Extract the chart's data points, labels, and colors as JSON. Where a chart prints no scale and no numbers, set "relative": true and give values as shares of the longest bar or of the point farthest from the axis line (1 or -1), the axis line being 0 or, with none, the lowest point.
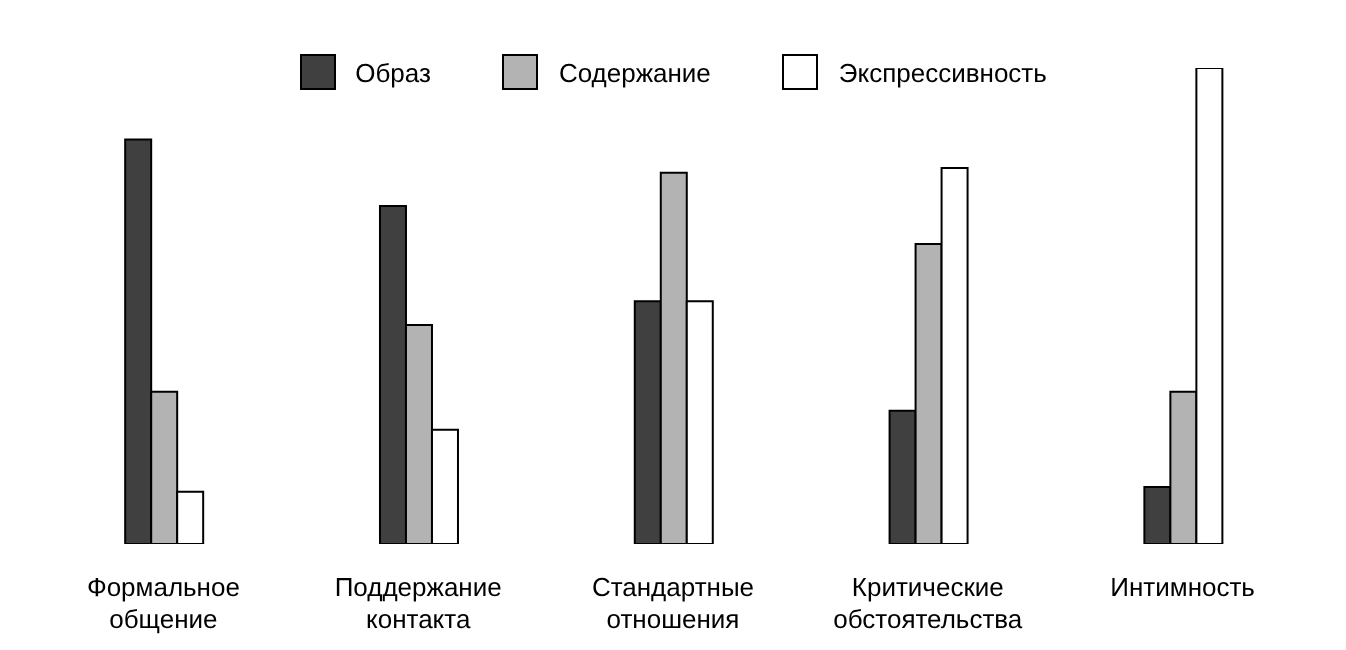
{
  "chart_data": {
    "type": "bar",
    "relative": true,
    "legend": "top",
    "categories": [
      "Формальное общение",
      "Поддержание контакта",
      "Стандартные отношения",
      "Критические обстоятельства",
      "Интимность"
    ],
    "series": [
      {
        "name": "Образ",
        "color": "#404040",
        "values": [
          0.85,
          0.71,
          0.51,
          0.28,
          0.12
        ]
      },
      {
        "name": "Содержание",
        "color": "#b3b3b3",
        "values": [
          0.32,
          0.46,
          0.78,
          0.63,
          0.32
        ]
      },
      {
        "name": "Экспрессивность",
        "color": "#ffffff",
        "values": [
          0.11,
          0.24,
          0.51,
          0.79,
          1
        ]
      }
    ]
  }
}
